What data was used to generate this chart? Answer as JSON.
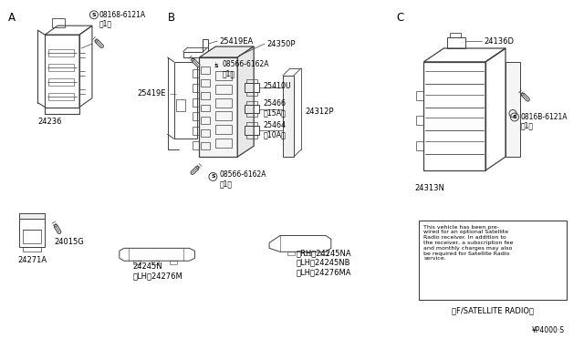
{
  "background_color": "#ffffff",
  "line_color": "#404040",
  "text_color": "#000000",
  "font_size": 6.0,
  "section_labels": [
    "A",
    "B",
    "C"
  ],
  "parts": {
    "A_bracket_label": "24236",
    "A_screw_label": "S 08168-6121A\n（1）",
    "B_top_label": "25419EA",
    "B_screw_top_label": "S 08566-6162A\n（1）",
    "B_left_label": "25419E",
    "B_main_label": "24350P",
    "B_fuse1_label": "25410U",
    "B_fuse2_label": "25466\n（15A）",
    "B_fuse3_label": "25464\n（10A）",
    "B_cover_label": "24312P",
    "B_screw_bot_label": "S 08566-6162A\n（1）",
    "C_box_label": "24136D",
    "C_screw_label": "S 0816B-6121A\n（1）",
    "C_bottom_label": "24313N",
    "bottom_left_cap_label": "24271A",
    "bottom_left_screw_label": "24015G",
    "bottom_mid1_label": "24245N\n（LH）24276M",
    "bottom_mid2_label": "（RH）24245NA\n（LH）24245NB\n（LH）24276MA",
    "satellite_text": "This vehicle has been pre-\nwired for an optional Satellite\nRadio receiver. In addition to\nthe receiver, a subscription fee\nand monthly charges may also\nbe required for Satellite Radio\nservice.",
    "satellite_label": "（F/SATELLITE RADIO）",
    "drawing_number": "¥P4000·S"
  }
}
